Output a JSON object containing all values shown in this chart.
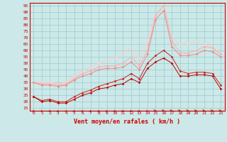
{
  "xlabel": "Vent moyen/en rafales ( km/h )",
  "x": [
    0,
    1,
    2,
    3,
    4,
    5,
    6,
    7,
    8,
    9,
    10,
    11,
    12,
    13,
    14,
    15,
    16,
    17,
    18,
    19,
    20,
    21,
    22,
    23
  ],
  "ylim": [
    13,
    97
  ],
  "yticks": [
    15,
    20,
    25,
    30,
    35,
    40,
    45,
    50,
    55,
    60,
    65,
    70,
    75,
    80,
    85,
    90,
    95
  ],
  "background_color": "#cce8e8",
  "grid_color": "#99cccc",
  "line1": [
    24,
    20,
    21,
    19,
    19,
    22,
    25,
    27,
    30,
    31,
    33,
    34,
    38,
    35,
    46,
    51,
    54,
    50,
    40,
    40,
    41,
    41,
    40,
    30
  ],
  "line2": [
    24,
    21,
    22,
    20,
    20,
    24,
    27,
    29,
    32,
    34,
    36,
    38,
    42,
    38,
    50,
    56,
    60,
    55,
    44,
    42,
    43,
    43,
    42,
    33
  ],
  "line3": [
    35,
    33,
    33,
    32,
    33,
    37,
    40,
    42,
    45,
    46,
    46,
    47,
    51,
    45,
    57,
    84,
    91,
    63,
    56,
    56,
    57,
    60,
    59,
    55
  ],
  "line4": [
    35,
    34,
    34,
    33,
    34,
    38,
    42,
    44,
    47,
    48,
    48,
    50,
    55,
    48,
    60,
    87,
    95,
    67,
    58,
    58,
    60,
    63,
    62,
    57
  ],
  "line5": [
    35,
    35,
    35,
    34,
    35,
    40,
    44,
    47,
    50,
    52,
    54,
    58,
    62,
    54,
    67,
    87,
    95,
    69,
    65,
    65,
    67,
    65,
    62,
    58
  ],
  "color1": "#bb0000",
  "color2": "#cc2222",
  "color3": "#ee8888",
  "color4": "#ffaaaa",
  "color5": "#ffcccc",
  "wind_arrows": [
    50,
    55,
    55,
    80,
    60,
    60,
    60,
    60,
    60,
    60,
    45,
    45,
    45,
    45,
    45,
    0,
    0,
    0,
    0,
    0,
    0,
    0,
    0,
    0
  ]
}
